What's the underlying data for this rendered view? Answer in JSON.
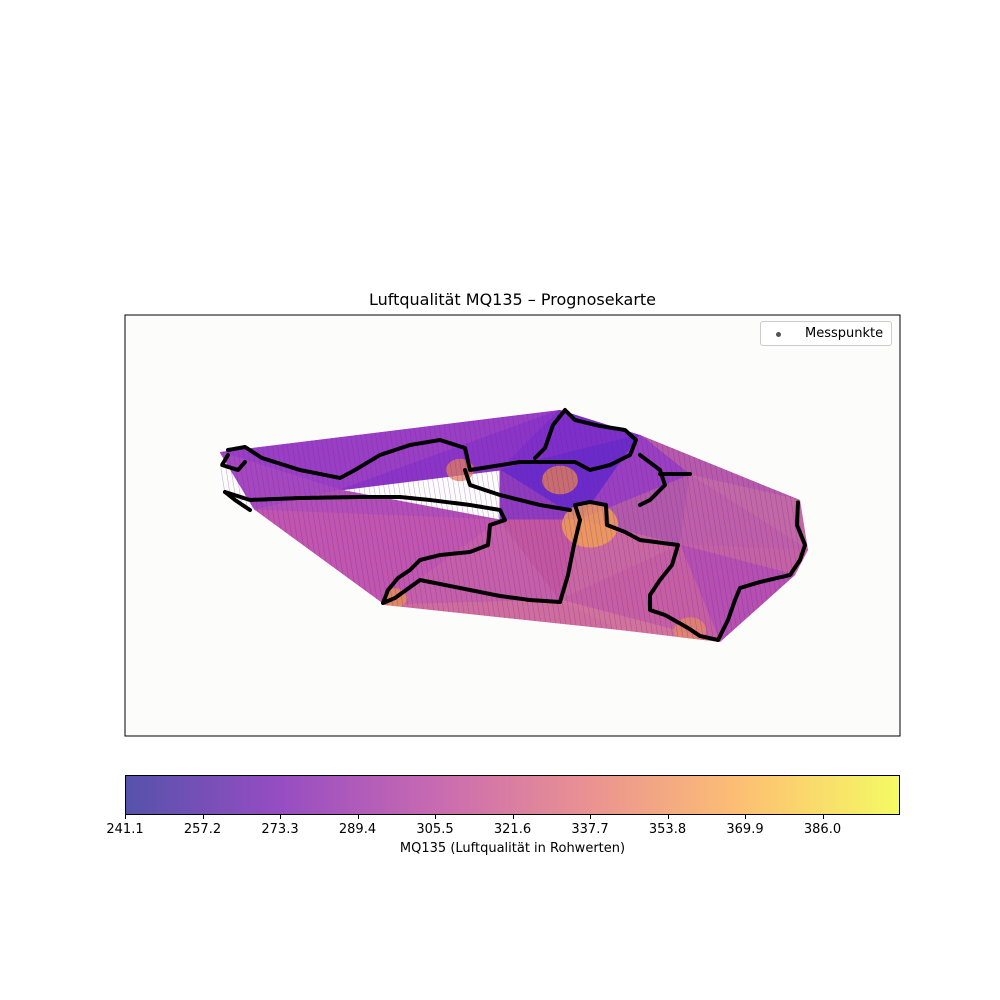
{
  "chart_data": {
    "type": "heatmap",
    "title": "Luftqualität MQ135 – Prognosekarte",
    "legend": {
      "entries": [
        "Messpunkte"
      ],
      "placement": "top-right"
    },
    "grid": false,
    "axes_ticks_visible": false,
    "colormap": "plasma",
    "colorbar": {
      "label": "MQ135 (Luftqualität in Rohwerten)",
      "min": 241.1,
      "max": 402.1,
      "ticks": [
        "241.1",
        "257.2",
        "273.3",
        "289.4",
        "305.5",
        "321.6",
        "337.7",
        "353.8",
        "369.9",
        "386.0"
      ],
      "colors": [
        "#0d0887",
        "#6a00a8",
        "#b12a90",
        "#e16462",
        "#fca636",
        "#f0f921"
      ],
      "alpha": 0.7
    },
    "background_color": "#fcfcfb",
    "measurement_color": "#000000"
  }
}
